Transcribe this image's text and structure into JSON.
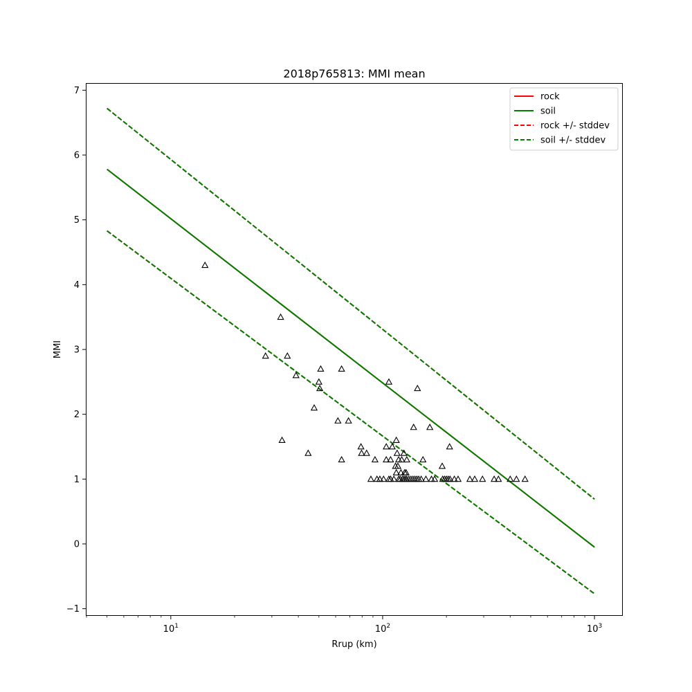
{
  "chart_data": {
    "type": "scatter",
    "title": "2018p765813: MMI mean",
    "xlabel": "Rrup (km)",
    "ylabel": "MMI",
    "xscale": "log",
    "xlim": [
      4,
      1350
    ],
    "ylim": [
      -1.1,
      7.1
    ],
    "grid": false,
    "legend_position": "top-right",
    "x_ticks": [
      {
        "value": 10,
        "base": "10",
        "exp": "1"
      },
      {
        "value": 100,
        "base": "10",
        "exp": "2"
      },
      {
        "value": 1000,
        "base": "10",
        "exp": "3"
      }
    ],
    "y_ticks": [
      {
        "value": -1,
        "label": "−1"
      },
      {
        "value": 0,
        "label": "0"
      },
      {
        "value": 1,
        "label": "1"
      },
      {
        "value": 2,
        "label": "2"
      },
      {
        "value": 3,
        "label": "3"
      },
      {
        "value": 4,
        "label": "4"
      },
      {
        "value": 5,
        "label": "5"
      },
      {
        "value": 6,
        "label": "6"
      },
      {
        "value": 7,
        "label": "7"
      }
    ],
    "lines": [
      {
        "name": "rock",
        "color": "#ff0000",
        "dash": false,
        "x": [
          5,
          1000
        ],
        "y": [
          5.78,
          -0.05
        ]
      },
      {
        "name": "soil",
        "color": "#008000",
        "dash": false,
        "x": [
          5,
          1000
        ],
        "y": [
          5.78,
          -0.05
        ]
      },
      {
        "name": "rock +/- stddev",
        "color": "#ff0000",
        "dash": true,
        "x": [
          5,
          1000
        ],
        "y": [
          6.72,
          0.69
        ]
      },
      {
        "name": "rock +/- stddev",
        "color": "#ff0000",
        "dash": true,
        "x": [
          5,
          1000
        ],
        "y": [
          4.83,
          -0.77
        ]
      },
      {
        "name": "soil +/- stddev",
        "color": "#008000",
        "dash": true,
        "x": [
          5,
          1000
        ],
        "y": [
          6.72,
          0.69
        ]
      },
      {
        "name": "soil +/- stddev",
        "color": "#008000",
        "dash": true,
        "x": [
          5,
          1000
        ],
        "y": [
          4.83,
          -0.77
        ]
      }
    ],
    "legend": [
      {
        "label": "rock",
        "color": "#ff0000",
        "dash": false
      },
      {
        "label": "soil",
        "color": "#008000",
        "dash": false
      },
      {
        "label": "rock +/- stddev",
        "color": "#ff0000",
        "dash": true
      },
      {
        "label": "soil +/- stddev",
        "color": "#008000",
        "dash": true
      }
    ],
    "observations": {
      "marker": "triangle",
      "color": "#000000",
      "points": [
        [
          14.5,
          4.3
        ],
        [
          33,
          3.5
        ],
        [
          28,
          2.9
        ],
        [
          35.5,
          2.9
        ],
        [
          39,
          2.6
        ],
        [
          51,
          2.7
        ],
        [
          50,
          2.5
        ],
        [
          50.5,
          2.4
        ],
        [
          64,
          2.7
        ],
        [
          47.5,
          2.1
        ],
        [
          61.5,
          1.9
        ],
        [
          69,
          1.9
        ],
        [
          33.5,
          1.6
        ],
        [
          44.5,
          1.4
        ],
        [
          64,
          1.3
        ],
        [
          79,
          1.5
        ],
        [
          79.5,
          1.4
        ],
        [
          84,
          1.4
        ],
        [
          92,
          1.3
        ],
        [
          107,
          2.5
        ],
        [
          146,
          2.4
        ],
        [
          140,
          1.8
        ],
        [
          167,
          1.8
        ],
        [
          116,
          1.6
        ],
        [
          104,
          1.5
        ],
        [
          111,
          1.5
        ],
        [
          207,
          1.5
        ],
        [
          117,
          1.4
        ],
        [
          126,
          1.4
        ],
        [
          104,
          1.3
        ],
        [
          109,
          1.3
        ],
        [
          119,
          1.3
        ],
        [
          123,
          1.3
        ],
        [
          130,
          1.3
        ],
        [
          155,
          1.3
        ],
        [
          115,
          1.2
        ],
        [
          118,
          1.2
        ],
        [
          191,
          1.2
        ],
        [
          116,
          1.1
        ],
        [
          122,
          1.1
        ],
        [
          127,
          1.1
        ],
        [
          129,
          1.1
        ],
        [
          88,
          1.0
        ],
        [
          94,
          1.0
        ],
        [
          97,
          1.0
        ],
        [
          101,
          1.0
        ],
        [
          107,
          1.0
        ],
        [
          109,
          1.0
        ],
        [
          113,
          1.0
        ],
        [
          119,
          1.0
        ],
        [
          121,
          1.0
        ],
        [
          124,
          1.0
        ],
        [
          126,
          1.0
        ],
        [
          128,
          1.0
        ],
        [
          130,
          1.0
        ],
        [
          133,
          1.0
        ],
        [
          136,
          1.0
        ],
        [
          139,
          1.0
        ],
        [
          142,
          1.0
        ],
        [
          145,
          1.0
        ],
        [
          148,
          1.0
        ],
        [
          152,
          1.0
        ],
        [
          160,
          1.0
        ],
        [
          170,
          1.0
        ],
        [
          176,
          1.0
        ],
        [
          192,
          1.0
        ],
        [
          196,
          1.0
        ],
        [
          200,
          1.0
        ],
        [
          204,
          1.0
        ],
        [
          208,
          1.0
        ],
        [
          218,
          1.0
        ],
        [
          227,
          1.0
        ],
        [
          258,
          1.0
        ],
        [
          272,
          1.0
        ],
        [
          296,
          1.0
        ],
        [
          336,
          1.0
        ],
        [
          352,
          1.0
        ],
        [
          400,
          1.0
        ],
        [
          428,
          1.0
        ],
        [
          470,
          1.0
        ]
      ]
    }
  }
}
